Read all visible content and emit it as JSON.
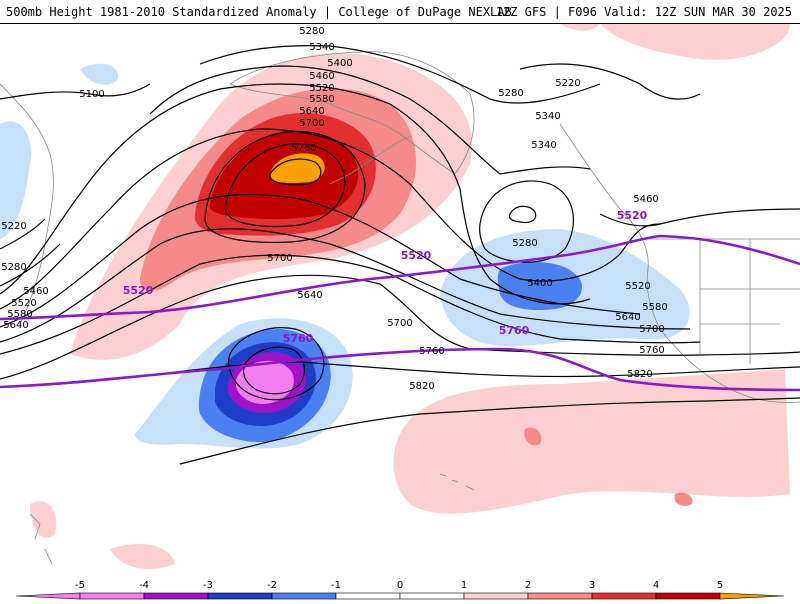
{
  "header": {
    "left_title": "500mb Height 1981-2010 Standardized Anomaly | College of DuPage NEXLAB",
    "right_title": "12Z GFS | F096 Valid: 12Z SUN MAR 30 2025"
  },
  "colors": {
    "anom_neg5": "#f27ff2",
    "anom_neg4": "#9e13c8",
    "anom_neg3": "#1e3ec8",
    "anom_neg2": "#4a80f0",
    "anom_neg1": "#c6e0fa",
    "anom_pos1": "#fcd0d0",
    "anom_pos2": "#f58a8a",
    "anom_pos3": "#e23030",
    "anom_pos4": "#c00000",
    "anom_pos5": "#f5a200",
    "height_contour": "#000000",
    "highlight_contour": "#8a19c8",
    "coastline": "#888888"
  },
  "contour_labels": [
    {
      "text": "5280"
    },
    {
      "text": "5340"
    },
    {
      "text": "5400"
    },
    {
      "text": "5460"
    },
    {
      "text": "5520"
    },
    {
      "text": "5580"
    },
    {
      "text": "5640"
    },
    {
      "text": "5700"
    },
    {
      "text": "5760"
    },
    {
      "text": "5100"
    },
    {
      "text": "5220"
    },
    {
      "text": "5280"
    },
    {
      "text": "5340"
    },
    {
      "text": "5340"
    },
    {
      "text": "5400"
    },
    {
      "text": "5280"
    },
    {
      "text": "5460"
    },
    {
      "text": "5700"
    },
    {
      "text": "5640"
    },
    {
      "text": "5700"
    },
    {
      "text": "5760"
    },
    {
      "text": "5820"
    },
    {
      "text": "5520"
    },
    {
      "text": "5580"
    },
    {
      "text": "5640"
    },
    {
      "text": "5700"
    },
    {
      "text": "5760"
    },
    {
      "text": "5820"
    },
    {
      "text": "5220"
    },
    {
      "text": "5280"
    },
    {
      "text": "5460"
    },
    {
      "text": "5520"
    },
    {
      "text": "5580"
    },
    {
      "text": "5640"
    }
  ],
  "highlight_labels": [
    {
      "text": "5520"
    },
    {
      "text": "5520"
    },
    {
      "text": "5520"
    },
    {
      "text": "5760"
    },
    {
      "text": "5760"
    }
  ],
  "colorbar": {
    "ticks": [
      "-5",
      "-4",
      "-3",
      "-2",
      "-1",
      "0",
      "1",
      "2",
      "3",
      "4",
      "5"
    ]
  }
}
